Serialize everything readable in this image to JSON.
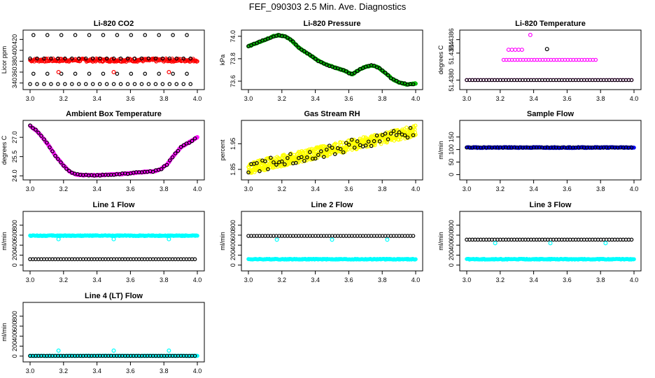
{
  "figure_title": "FEF_090303  2.5 Min. Ave. Diagnostics",
  "colors": {
    "red": "#ff0000",
    "green": "#00bb00",
    "magenta": "#ff00ff",
    "yellow": "#ffff00",
    "blue": "#0000ff",
    "cyan": "#00ffff",
    "black": "#000000"
  },
  "chart_data": [
    {
      "type": "scatter",
      "title": "Li-820 CO2",
      "ylabel": "Licor ppm",
      "xlim": [
        3.0,
        4.0
      ],
      "ylim": [
        333,
        432
      ],
      "xticks": [
        "3.0",
        "3.2",
        "3.4",
        "3.6",
        "3.8",
        "4.0"
      ],
      "yticks": [
        "340",
        "360",
        "380",
        "400",
        "420"
      ],
      "series": [
        {
          "style": "dense",
          "color": "red",
          "x_range": [
            3.0,
            4.0
          ],
          "y_center": 382,
          "y_spread": 3
        },
        {
          "style": "points",
          "color": "black",
          "y_levels": [
            338,
            357,
            385,
            428
          ],
          "x_step": 0.0417
        },
        {
          "style": "points",
          "color": "red",
          "x": [
            3.17,
            3.5,
            3.83
          ],
          "y": [
            360,
            360,
            360
          ]
        }
      ]
    },
    {
      "type": "scatter",
      "title": "Li-820 Pressure",
      "ylabel": "kPa",
      "xlim": [
        3.0,
        4.0
      ],
      "ylim": [
        73.55,
        74.03
      ],
      "xticks": [
        "3.0",
        "3.2",
        "3.4",
        "3.6",
        "3.8",
        "4.0"
      ],
      "yticks": [
        "73.6",
        "73.8",
        "74.0"
      ],
      "series": [
        {
          "style": "curve",
          "color": "green",
          "x": [
            3.0,
            3.05,
            3.1,
            3.15,
            3.18,
            3.22,
            3.26,
            3.3,
            3.36,
            3.42,
            3.46,
            3.52,
            3.58,
            3.62,
            3.66,
            3.7,
            3.74,
            3.78,
            3.82,
            3.86,
            3.9,
            3.95,
            4.0
          ],
          "y": [
            73.91,
            73.94,
            73.97,
            74.0,
            74.01,
            74.0,
            73.96,
            73.9,
            73.84,
            73.78,
            73.75,
            73.72,
            73.69,
            73.66,
            73.7,
            73.73,
            73.74,
            73.72,
            73.67,
            73.62,
            73.59,
            73.57,
            73.58
          ]
        },
        {
          "style": "points-on-curve",
          "color": "black"
        }
      ]
    },
    {
      "type": "scatter",
      "title": "Li-820 Temperature",
      "ylabel": "degrees C",
      "xlim": [
        3.0,
        4.0
      ],
      "ylim": [
        51.4379,
        51.4387
      ],
      "xticks": [
        "3.0",
        "3.2",
        "3.4",
        "3.6",
        "3.8",
        "4.0"
      ],
      "yticks": [
        "51.4380",
        "51.4384",
        "51.4386"
      ],
      "series": [
        {
          "style": "row",
          "color": "magenta",
          "y": 51.438,
          "x_range": [
            3.0,
            4.0
          ]
        },
        {
          "style": "row",
          "color": "magenta",
          "y": 51.4383,
          "x_range": [
            3.22,
            3.78
          ]
        },
        {
          "style": "points",
          "color": "magenta",
          "x": [
            3.25,
            3.27,
            3.29,
            3.31,
            3.33
          ],
          "y": [
            51.43845,
            51.43845,
            51.43845,
            51.43845,
            51.43845
          ]
        },
        {
          "style": "points",
          "color": "magenta",
          "x": [
            3.38
          ],
          "y": [
            51.43867
          ]
        },
        {
          "style": "points",
          "color": "black",
          "x": [
            3.48
          ],
          "y": [
            51.43846
          ]
        },
        {
          "style": "row",
          "color": "black",
          "y": 51.438,
          "x_range": [
            3.0,
            4.0
          ]
        }
      ]
    },
    {
      "type": "scatter",
      "title": "Ambient Box Temperature",
      "ylabel": "degrees C",
      "xlim": [
        3.0,
        4.0
      ],
      "ylim": [
        23.9,
        28.1
      ],
      "xticks": [
        "3.0",
        "3.2",
        "3.4",
        "3.6",
        "3.8",
        "4.0"
      ],
      "yticks": [
        "24.0",
        "25.5",
        "27.0"
      ],
      "series": [
        {
          "style": "curve",
          "color": "magenta",
          "x": [
            3.0,
            3.04,
            3.08,
            3.12,
            3.16,
            3.2,
            3.24,
            3.28,
            3.32,
            3.4,
            3.5,
            3.6,
            3.68,
            3.74,
            3.78,
            3.82,
            3.86,
            3.9,
            3.95,
            4.0
          ],
          "y": [
            27.9,
            27.5,
            26.9,
            26.2,
            25.4,
            24.8,
            24.3,
            24.1,
            24.05,
            24.05,
            24.1,
            24.2,
            24.3,
            24.35,
            24.5,
            24.9,
            25.6,
            26.2,
            26.6,
            27.0
          ]
        },
        {
          "style": "points-on-curve",
          "color": "black"
        }
      ]
    },
    {
      "type": "scatter",
      "title": "Gas Stream RH",
      "ylabel": "percent",
      "xlim": [
        3.0,
        4.0
      ],
      "ylim": [
        1.82,
        2.03
      ],
      "xticks": [
        "3.0",
        "3.2",
        "3.4",
        "3.6",
        "3.8",
        "4.0"
      ],
      "yticks": [
        "1.85",
        "1.95"
      ],
      "series": [
        {
          "style": "band",
          "color": "yellow",
          "x_range": [
            3.0,
            4.0
          ],
          "y_start": 1.855,
          "y_end": 2.0,
          "y_spread": 0.022
        },
        {
          "style": "band-points",
          "color": "black",
          "x_step": 0.0167
        }
      ]
    },
    {
      "type": "scatter",
      "title": "Sample Flow",
      "ylabel": "ml/min",
      "xlim": [
        3.0,
        4.0
      ],
      "ylim": [
        -10,
        205
      ],
      "xticks": [
        "3.0",
        "3.2",
        "3.4",
        "3.6",
        "3.8",
        "4.0"
      ],
      "yticks": [
        "0",
        "50",
        "100",
        "150"
      ],
      "series": [
        {
          "style": "dense",
          "color": "blue",
          "x_range": [
            3.0,
            4.0
          ],
          "y_center": 108,
          "y_spread": 2
        },
        {
          "style": "row",
          "color": "black",
          "y": 108,
          "x_range": [
            3.0,
            4.0
          ]
        }
      ]
    },
    {
      "type": "scatter",
      "title": "Line 1 Flow",
      "ylabel": "ml/min",
      "xlim": [
        3.0,
        4.0
      ],
      "ylim": [
        -60,
        1020
      ],
      "xticks": [
        "3.0",
        "3.2",
        "3.4",
        "3.6",
        "3.8",
        "4.0"
      ],
      "yticks": [
        "0",
        "200",
        "400",
        "600",
        "800"
      ],
      "series": [
        {
          "style": "dense",
          "color": "cyan",
          "x_range": [
            3.0,
            4.0
          ],
          "y_center": 590,
          "y_spread": 8
        },
        {
          "style": "row",
          "color": "black",
          "y": 118,
          "x_range": [
            3.0,
            4.0
          ]
        },
        {
          "style": "points",
          "color": "cyan",
          "x": [
            3.17,
            3.5,
            3.83
          ],
          "y": [
            520,
            520,
            520
          ]
        }
      ]
    },
    {
      "type": "scatter",
      "title": "Line 2 Flow",
      "ylabel": "ml/min",
      "xlim": [
        3.0,
        4.0
      ],
      "ylim": [
        -60,
        1020
      ],
      "xticks": [
        "3.0",
        "3.2",
        "3.4",
        "3.6",
        "3.8",
        "4.0"
      ],
      "yticks": [
        "0",
        "200",
        "400",
        "600",
        "800"
      ],
      "series": [
        {
          "style": "dense",
          "color": "cyan",
          "x_range": [
            3.0,
            4.0
          ],
          "y_center": 118,
          "y_spread": 8
        },
        {
          "style": "row",
          "color": "black",
          "y": 585,
          "x_range": [
            3.0,
            4.0
          ]
        },
        {
          "style": "points",
          "color": "cyan",
          "x": [
            3.17,
            3.5,
            3.83
          ],
          "y": [
            510,
            510,
            510
          ]
        }
      ]
    },
    {
      "type": "scatter",
      "title": "Line 3 Flow",
      "ylabel": "ml/min",
      "xlim": [
        3.0,
        4.0
      ],
      "ylim": [
        -60,
        1020
      ],
      "xticks": [
        "3.0",
        "3.2",
        "3.4",
        "3.6",
        "3.8",
        "4.0"
      ],
      "yticks": [
        "0",
        "200",
        "400",
        "600",
        "800"
      ],
      "series": [
        {
          "style": "dense",
          "color": "cyan",
          "x_range": [
            3.0,
            4.0
          ],
          "y_center": 118,
          "y_spread": 8
        },
        {
          "style": "row",
          "color": "black",
          "y": 510,
          "x_range": [
            3.0,
            4.0
          ]
        },
        {
          "style": "points",
          "color": "cyan",
          "x": [
            3.17,
            3.5,
            3.83
          ],
          "y": [
            440,
            440,
            440
          ]
        }
      ]
    },
    {
      "type": "scatter",
      "title": "Line 4 (LT) Flow",
      "ylabel": "ml/min",
      "xlim": [
        3.0,
        4.0
      ],
      "ylim": [
        -60,
        1020
      ],
      "xticks": [
        "3.0",
        "3.2",
        "3.4",
        "3.6",
        "3.8",
        "4.0"
      ],
      "yticks": [
        "0",
        "200",
        "400",
        "600",
        "800"
      ],
      "series": [
        {
          "style": "dense",
          "color": "cyan",
          "x_range": [
            3.0,
            4.0
          ],
          "y_center": 5,
          "y_spread": 4
        },
        {
          "style": "row",
          "color": "black",
          "y": 5,
          "x_range": [
            3.0,
            4.0
          ]
        },
        {
          "style": "points",
          "color": "cyan",
          "x": [
            3.17,
            3.5,
            3.83
          ],
          "y": [
            110,
            110,
            110
          ]
        }
      ]
    }
  ]
}
